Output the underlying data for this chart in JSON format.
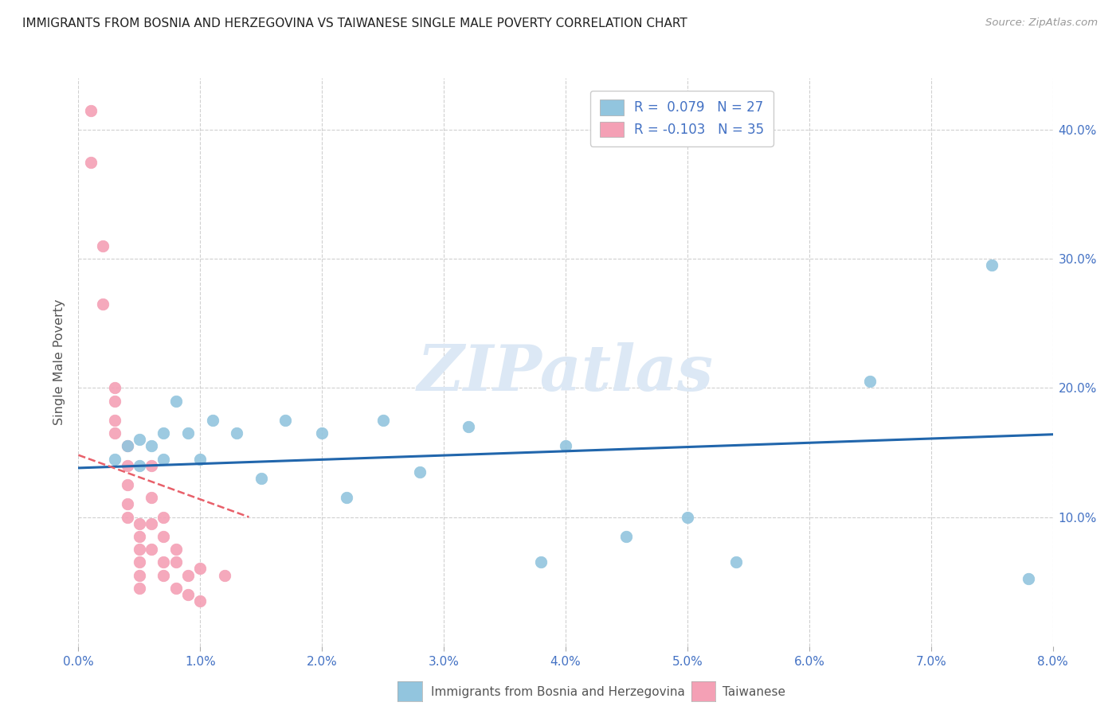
{
  "title": "IMMIGRANTS FROM BOSNIA AND HERZEGOVINA VS TAIWANESE SINGLE MALE POVERTY CORRELATION CHART",
  "source": "Source: ZipAtlas.com",
  "ylabel": "Single Male Poverty",
  "xlim": [
    0.0,
    0.08
  ],
  "ylim": [
    0.0,
    0.44
  ],
  "blue_color": "#92c5de",
  "pink_color": "#f4a0b5",
  "blue_line_color": "#2166ac",
  "pink_line_color": "#e8606a",
  "grid_color": "#d0d0d0",
  "title_color": "#222222",
  "axis_color": "#4472c4",
  "watermark_color": "#dce8f5",
  "blue_points_x": [
    0.003,
    0.004,
    0.005,
    0.005,
    0.006,
    0.007,
    0.007,
    0.008,
    0.009,
    0.01,
    0.011,
    0.013,
    0.015,
    0.017,
    0.02,
    0.022,
    0.025,
    0.028,
    0.032,
    0.038,
    0.04,
    0.045,
    0.05,
    0.054,
    0.065,
    0.075,
    0.078
  ],
  "blue_points_y": [
    0.145,
    0.155,
    0.14,
    0.16,
    0.155,
    0.145,
    0.165,
    0.19,
    0.165,
    0.145,
    0.175,
    0.165,
    0.13,
    0.175,
    0.165,
    0.115,
    0.175,
    0.135,
    0.17,
    0.065,
    0.155,
    0.085,
    0.1,
    0.065,
    0.205,
    0.295,
    0.052
  ],
  "pink_points_x": [
    0.001,
    0.001,
    0.002,
    0.002,
    0.003,
    0.003,
    0.003,
    0.003,
    0.004,
    0.004,
    0.004,
    0.004,
    0.004,
    0.005,
    0.005,
    0.005,
    0.005,
    0.005,
    0.005,
    0.006,
    0.006,
    0.006,
    0.006,
    0.007,
    0.007,
    0.007,
    0.007,
    0.008,
    0.008,
    0.008,
    0.009,
    0.009,
    0.01,
    0.01,
    0.012
  ],
  "pink_points_y": [
    0.415,
    0.375,
    0.31,
    0.265,
    0.2,
    0.19,
    0.175,
    0.165,
    0.155,
    0.14,
    0.125,
    0.11,
    0.1,
    0.095,
    0.085,
    0.075,
    0.065,
    0.055,
    0.045,
    0.14,
    0.115,
    0.095,
    0.075,
    0.1,
    0.085,
    0.065,
    0.055,
    0.075,
    0.065,
    0.045,
    0.055,
    0.04,
    0.06,
    0.035,
    0.055
  ],
  "blue_trend_x": [
    0.0,
    0.08
  ],
  "blue_trend_y": [
    0.138,
    0.164
  ],
  "pink_trend_x": [
    0.0,
    0.014
  ],
  "pink_trend_y": [
    0.148,
    0.1
  ],
  "x_ticks": [
    0.0,
    0.01,
    0.02,
    0.03,
    0.04,
    0.05,
    0.06,
    0.07,
    0.08
  ],
  "x_labels": [
    "0.0%",
    "1.0%",
    "2.0%",
    "3.0%",
    "4.0%",
    "5.0%",
    "6.0%",
    "7.0%",
    "8.0%"
  ],
  "y_ticks_right": [
    0.1,
    0.2,
    0.3,
    0.4
  ],
  "y_labels_right": [
    "10.0%",
    "20.0%",
    "30.0%",
    "40.0%"
  ]
}
